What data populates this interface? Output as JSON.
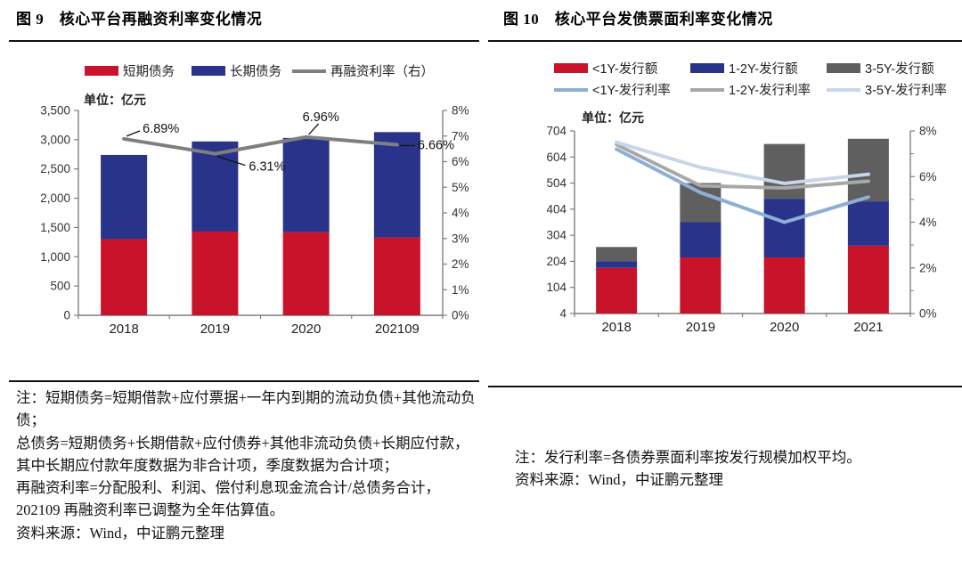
{
  "figures": [
    {
      "title": "图 9　核心平台再融资利率变化情况",
      "notes": [
        "注：短期债务=短期借款+应付票据+一年内到期的流动负债+其他流动负债；",
        "总债务=短期债务+长期借款+应付债券+其他非流动负债+长期应付款，其中长期应付款年度数据为非合计项，季度数据为合计项；",
        "再融资利率=分配股利、利润、偿付利息现金流合计/总债务合计，202109 再融资利率已调整为全年估算值。",
        "资料来源：Wind，中证鹏元整理"
      ]
    },
    {
      "title": "图 10　核心平台发债票面利率变化情况",
      "notes": [
        "注：发行利率=各债券票面利率按发行规模加权平均。",
        "资料来源：Wind，中证鹏元整理"
      ]
    }
  ],
  "chart_data": [
    {
      "type": "bar",
      "subtype": "stacked-bar-with-line",
      "title": "核心平台再融资利率变化情况",
      "unit": "单位：亿元",
      "categories": [
        "2018",
        "2019",
        "2020",
        "202109"
      ],
      "bar_series": [
        {
          "name": "短期债务",
          "color": "#C9132B",
          "values": [
            1300,
            1430,
            1420,
            1330
          ]
        },
        {
          "name": "长期债务",
          "color": "#29338A",
          "values": [
            1440,
            1540,
            1610,
            1800
          ]
        }
      ],
      "line_series": [
        {
          "name": "再融资利率（右）",
          "color": "#7F7F7F",
          "axis": "right",
          "values": [
            6.89,
            6.31,
            6.96,
            6.66
          ],
          "labels": [
            "6.89%",
            "6.31%",
            "6.96%",
            "6.66%"
          ]
        }
      ],
      "left_axis": {
        "min": 0,
        "max": 3500,
        "step": 500,
        "tick_labels": [
          "3,500",
          "3,000",
          "2,500",
          "2,000",
          "1,500",
          "1,000",
          "500",
          "0"
        ]
      },
      "right_axis": {
        "min": 0,
        "max": 8,
        "step": 1,
        "tick_labels": [
          "8%",
          "7%",
          "6%",
          "5%",
          "4%",
          "3%",
          "2%",
          "1%",
          "0%"
        ]
      },
      "grid": false,
      "legend_position": "top"
    },
    {
      "type": "bar",
      "subtype": "stacked-bar-with-lines",
      "title": "核心平台发债票面利率变化情况",
      "unit": "单位：亿元",
      "categories": [
        "2018",
        "2019",
        "2020",
        "2021"
      ],
      "bar_series": [
        {
          "name": "<1Y-发行额",
          "color": "#C9132B",
          "values": [
            175,
            215,
            215,
            260
          ]
        },
        {
          "name": "1-2Y-发行额",
          "color": "#29338A",
          "values": [
            25,
            135,
            225,
            170
          ]
        },
        {
          "name": "3-5Y-发行额",
          "color": "#5F5F5F",
          "values": [
            55,
            150,
            210,
            240
          ]
        }
      ],
      "line_series": [
        {
          "name": "<1Y-发行利率",
          "color": "#8CAFD2",
          "axis": "right",
          "values": [
            7.2,
            5.3,
            4.0,
            5.1
          ]
        },
        {
          "name": "1-2Y-发行利率",
          "color": "#A8A8A8",
          "axis": "right",
          "values": [
            7.4,
            5.6,
            5.5,
            5.8
          ]
        },
        {
          "name": "3-5Y-发行利率",
          "color": "#C7D7E8",
          "axis": "right",
          "values": [
            7.5,
            6.4,
            5.7,
            6.1
          ]
        }
      ],
      "left_axis": {
        "min": 4,
        "max": 704,
        "step": 100,
        "tick_labels": [
          "704",
          "604",
          "504",
          "404",
          "304",
          "204",
          "104",
          "4"
        ]
      },
      "right_axis": {
        "min": 0,
        "max": 8,
        "step": 2,
        "tick_labels": [
          "8%",
          "6%",
          "4%",
          "2%",
          "0%"
        ]
      },
      "grid": false,
      "legend_position": "top"
    }
  ]
}
